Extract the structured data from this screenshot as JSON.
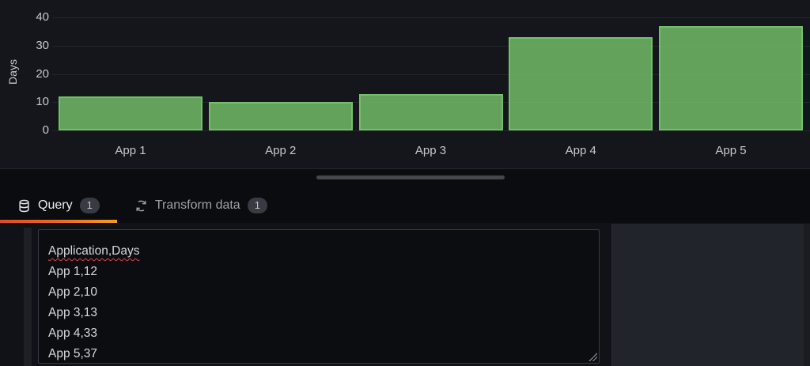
{
  "chart": {
    "ylabel": "Days",
    "yticks": [
      0,
      10,
      20,
      30,
      40
    ],
    "bar_fill": "rgba(115,191,105,0.83)",
    "bar_border": "#73bf69"
  },
  "chart_data": {
    "type": "bar",
    "categories": [
      "App 1",
      "App 2",
      "App 3",
      "App 4",
      "App 5"
    ],
    "values": [
      12,
      10,
      13,
      33,
      37
    ],
    "title": "",
    "xlabel": "",
    "ylabel": "Days",
    "ylim": [
      0,
      40
    ],
    "grid": true,
    "legend": false
  },
  "tabs": {
    "query": {
      "label": "Query",
      "badge": "1",
      "icon": "database-icon"
    },
    "transform": {
      "label": "Transform data",
      "badge": "1",
      "icon": "process-arrows-icon"
    }
  },
  "editor": {
    "lines": [
      "Application,Days",
      "App 1,12",
      "App 2,10",
      "App 3,13",
      "App 4,33",
      "App 5,37"
    ],
    "misspelled_line_index": 0
  },
  "colors": {
    "accent_underline_start": "#d94e2a",
    "accent_underline_end": "#f59c20",
    "bar_green": "#73bf69",
    "chart_bg": "#14161b",
    "page_bg": "#0b0c0f",
    "options_panel_bg": "#22242b"
  }
}
